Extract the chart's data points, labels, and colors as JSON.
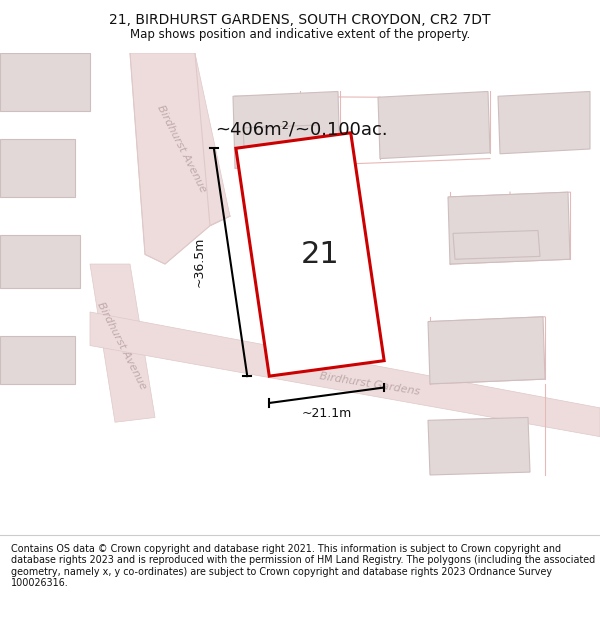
{
  "title": "21, BIRDHURST GARDENS, SOUTH CROYDON, CR2 7DT",
  "subtitle": "Map shows position and indicative extent of the property.",
  "area_label": "~406m²/~0.100ac.",
  "plot_number": "21",
  "width_label": "~21.1m",
  "height_label": "~36.5m",
  "footer": "Contains OS data © Crown copyright and database right 2021. This information is subject to Crown copyright and database rights 2023 and is reproduced with the permission of HM Land Registry. The polygons (including the associated geometry, namely x, y co-ordinates) are subject to Crown copyright and database rights 2023 Ordnance Survey 100026316.",
  "map_bg": "#f7f3f3",
  "road_fill": "#eedcdc",
  "road_edge": "#dfc8c8",
  "building_fill": "#e2d8d8",
  "building_edge": "#cebebe",
  "plot_fill": "#ffffff",
  "plot_edge": "#cc0000",
  "street_color": "#c0aaaa",
  "title_color": "#111111",
  "footer_color": "#111111",
  "outline_color": "#e8b8b8"
}
